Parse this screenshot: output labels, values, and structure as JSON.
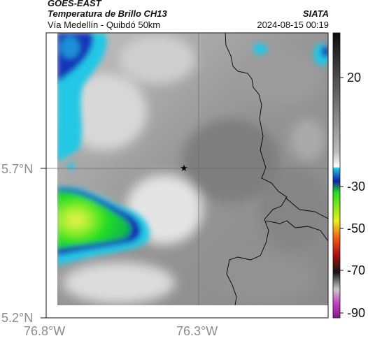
{
  "header": {
    "title_line1": "GOES-EAST",
    "title_line2": "Temperatura de Brillo CH13",
    "subtitle": "Vía Medellín - Quibdó 50km",
    "organization": "SIATA",
    "timestamp": "2024-08-15 00:19"
  },
  "map": {
    "lat_ticks": [
      "5.7°N",
      "5.2°N"
    ],
    "lon_ticks": [
      "76.8°W",
      "76.3°W"
    ],
    "marker_symbol": "star-icon",
    "colors": {
      "cold_green": "#22dd22",
      "cold_cyan": "#22c8e6",
      "cold_blue": "#1428b4",
      "warm_gray": "#8a8a8a",
      "border": "#000000"
    }
  },
  "colorbar": {
    "tick_labels": [
      "20",
      "-30",
      "-50",
      "-70",
      "-90"
    ]
  }
}
